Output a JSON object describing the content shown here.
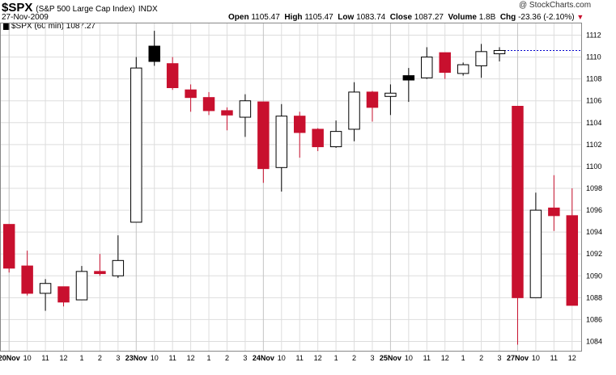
{
  "header": {
    "symbol": "$SPX",
    "name": "(S&P 500 Large Cap Index)",
    "exchange": "INDX",
    "date": "27-Nov-2009",
    "watermark": "@ StockCharts.com",
    "open_label": "Open",
    "open": "1105.47",
    "high_label": "High",
    "high": "1105.47",
    "low_label": "Low",
    "low": "1083.74",
    "close_label": "Close",
    "close": "1087.27",
    "volume_label": "Volume",
    "volume": "1.8B",
    "chg_label": "Chg",
    "chg": "-23.36 (-2.10%)",
    "chg_arrow": "▼"
  },
  "legend": {
    "label": "$SPX (60 min) 1087.27",
    "color": "#000000"
  },
  "colors": {
    "up": "#ffffff",
    "down": "#c8102e",
    "neutral_up": "#000000",
    "grid": "#dddddd",
    "last_price_line": "#0000cc"
  },
  "chart_data": {
    "type": "candlestick",
    "title": "$SPX (S&P 500 Large Cap Index) INDX",
    "ylim": [
      1083,
      1113
    ],
    "yticks": [
      1084,
      1086,
      1088,
      1090,
      1092,
      1094,
      1096,
      1098,
      1100,
      1102,
      1104,
      1106,
      1108,
      1110,
      1112
    ],
    "xticks": [
      {
        "label": "20Nov",
        "bold": true,
        "i": 0
      },
      {
        "label": "10",
        "i": 1
      },
      {
        "label": "11",
        "i": 2
      },
      {
        "label": "12",
        "i": 3
      },
      {
        "label": "1",
        "i": 4
      },
      {
        "label": "2",
        "i": 5
      },
      {
        "label": "3",
        "i": 6
      },
      {
        "label": "23Nov",
        "bold": true,
        "i": 7
      },
      {
        "label": "10",
        "i": 8
      },
      {
        "label": "11",
        "i": 9
      },
      {
        "label": "12",
        "i": 10
      },
      {
        "label": "1",
        "i": 11
      },
      {
        "label": "2",
        "i": 12
      },
      {
        "label": "3",
        "i": 13
      },
      {
        "label": "24Nov",
        "bold": true,
        "i": 14
      },
      {
        "label": "10",
        "i": 15
      },
      {
        "label": "11",
        "i": 16
      },
      {
        "label": "12",
        "i": 17
      },
      {
        "label": "1",
        "i": 18
      },
      {
        "label": "2",
        "i": 19
      },
      {
        "label": "3",
        "i": 20
      },
      {
        "label": "25Nov",
        "bold": true,
        "i": 21
      },
      {
        "label": "10",
        "i": 22
      },
      {
        "label": "11",
        "i": 23
      },
      {
        "label": "12",
        "i": 24
      },
      {
        "label": "1",
        "i": 25
      },
      {
        "label": "2",
        "i": 26
      },
      {
        "label": "3",
        "i": 27
      },
      {
        "label": "27Nov",
        "bold": true,
        "i": 28
      },
      {
        "label": "10",
        "i": 29
      },
      {
        "label": "11",
        "i": 30
      },
      {
        "label": "12",
        "i": 31
      }
    ],
    "last_price": 1110.6,
    "candles": [
      {
        "o": 1094.7,
        "h": 1094.7,
        "l": 1090.3,
        "c": 1090.7,
        "dir": "down"
      },
      {
        "o": 1090.9,
        "h": 1092.3,
        "l": 1088.2,
        "c": 1088.4,
        "dir": "down"
      },
      {
        "o": 1088.4,
        "h": 1089.7,
        "l": 1086.8,
        "c": 1089.3,
        "dir": "up"
      },
      {
        "o": 1089.0,
        "h": 1089.0,
        "l": 1087.2,
        "c": 1087.6,
        "dir": "down"
      },
      {
        "o": 1087.8,
        "h": 1090.9,
        "l": 1087.8,
        "c": 1090.4,
        "dir": "up"
      },
      {
        "o": 1090.4,
        "h": 1092.0,
        "l": 1090.0,
        "c": 1090.2,
        "dir": "down"
      },
      {
        "o": 1090.0,
        "h": 1093.7,
        "l": 1089.8,
        "c": 1091.4,
        "dir": "up"
      },
      {
        "o": 1094.9,
        "h": 1110.0,
        "l": 1094.9,
        "c": 1109.0,
        "dir": "up"
      },
      {
        "o": 1109.6,
        "h": 1112.4,
        "l": 1109.2,
        "c": 1111.0,
        "dir": "upblack"
      },
      {
        "o": 1109.4,
        "h": 1110.0,
        "l": 1107.0,
        "c": 1107.2,
        "dir": "down"
      },
      {
        "o": 1107.0,
        "h": 1107.5,
        "l": 1105.0,
        "c": 1106.3,
        "dir": "down"
      },
      {
        "o": 1106.3,
        "h": 1106.8,
        "l": 1104.7,
        "c": 1105.1,
        "dir": "down"
      },
      {
        "o": 1105.1,
        "h": 1105.4,
        "l": 1103.3,
        "c": 1104.7,
        "dir": "down"
      },
      {
        "o": 1104.5,
        "h": 1106.6,
        "l": 1102.7,
        "c": 1106.0,
        "dir": "up"
      },
      {
        "o": 1105.9,
        "h": 1105.9,
        "l": 1098.5,
        "c": 1099.8,
        "dir": "down"
      },
      {
        "o": 1099.9,
        "h": 1105.7,
        "l": 1097.7,
        "c": 1104.6,
        "dir": "up"
      },
      {
        "o": 1104.6,
        "h": 1105.0,
        "l": 1100.8,
        "c": 1103.1,
        "dir": "down"
      },
      {
        "o": 1103.4,
        "h": 1103.5,
        "l": 1101.4,
        "c": 1101.8,
        "dir": "down"
      },
      {
        "o": 1101.8,
        "h": 1104.2,
        "l": 1101.7,
        "c": 1103.2,
        "dir": "up"
      },
      {
        "o": 1103.4,
        "h": 1107.7,
        "l": 1102.3,
        "c": 1106.8,
        "dir": "up"
      },
      {
        "o": 1106.8,
        "h": 1106.9,
        "l": 1104.1,
        "c": 1105.4,
        "dir": "down"
      },
      {
        "o": 1106.4,
        "h": 1107.5,
        "l": 1104.7,
        "c": 1106.7,
        "dir": "up"
      },
      {
        "o": 1107.9,
        "h": 1109.0,
        "l": 1105.9,
        "c": 1108.3,
        "dir": "upblack"
      },
      {
        "o": 1108.1,
        "h": 1110.9,
        "l": 1108.0,
        "c": 1110.0,
        "dir": "up"
      },
      {
        "o": 1110.4,
        "h": 1110.4,
        "l": 1108.0,
        "c": 1108.6,
        "dir": "down"
      },
      {
        "o": 1108.5,
        "h": 1109.5,
        "l": 1108.3,
        "c": 1109.3,
        "dir": "up"
      },
      {
        "o": 1109.2,
        "h": 1111.2,
        "l": 1108.1,
        "c": 1110.5,
        "dir": "up"
      },
      {
        "o": 1110.3,
        "h": 1110.9,
        "l": 1109.6,
        "c": 1110.6,
        "dir": "up"
      },
      {
        "o": 1105.5,
        "h": 1105.5,
        "l": 1083.7,
        "c": 1088.0,
        "dir": "down"
      },
      {
        "o": 1088.0,
        "h": 1097.6,
        "l": 1088.0,
        "c": 1096.0,
        "dir": "up"
      },
      {
        "o": 1096.2,
        "h": 1099.2,
        "l": 1094.1,
        "c": 1095.5,
        "dir": "down"
      },
      {
        "o": 1095.5,
        "h": 1098.0,
        "l": 1087.3,
        "c": 1087.3,
        "dir": "down"
      }
    ]
  }
}
